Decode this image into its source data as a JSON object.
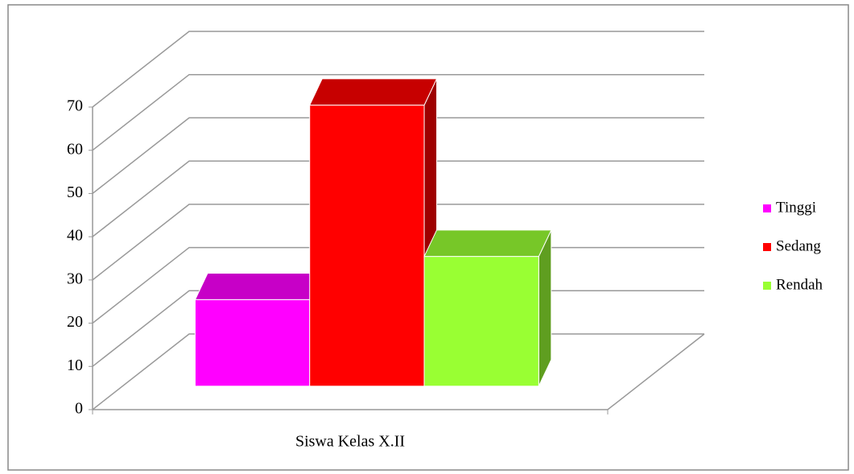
{
  "chart_data": {
    "type": "bar3d",
    "categories": [
      "Siswa Kelas X.II"
    ],
    "series": [
      {
        "name": "Tinggi",
        "color": "#ff00ff",
        "values": [
          20
        ]
      },
      {
        "name": "Sedang",
        "color": "#ff0000",
        "values": [
          65
        ]
      },
      {
        "name": "Rendah",
        "color": "#99ff33",
        "values": [
          30
        ]
      }
    ],
    "ylim": [
      0,
      70
    ],
    "yticks": [
      0,
      10,
      20,
      30,
      40,
      50,
      60,
      70
    ],
    "grid": true,
    "legend": "right"
  }
}
